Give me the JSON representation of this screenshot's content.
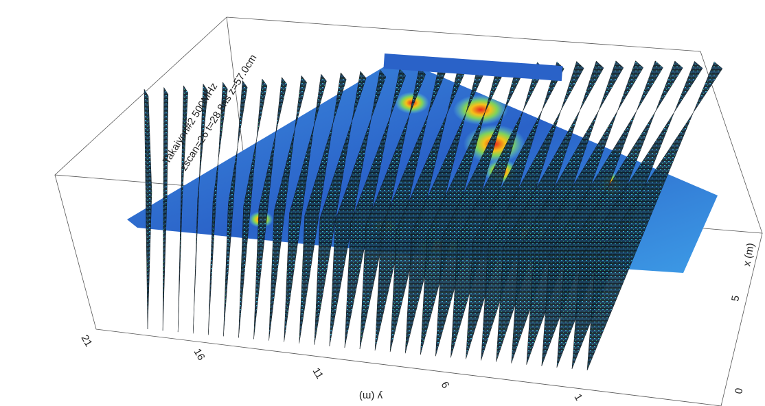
{
  "header": {
    "line1": "Takaiyon#2   500MHz",
    "line2": "zscan=26   t=28.8ns   z=57.0cm"
  },
  "axes": {
    "y_label": "y (m)",
    "y_ticks": [
      "21",
      "16",
      "11",
      "6",
      "1"
    ],
    "x_label": "x (m)",
    "x_ticks": [
      "5",
      "0"
    ]
  }
}
